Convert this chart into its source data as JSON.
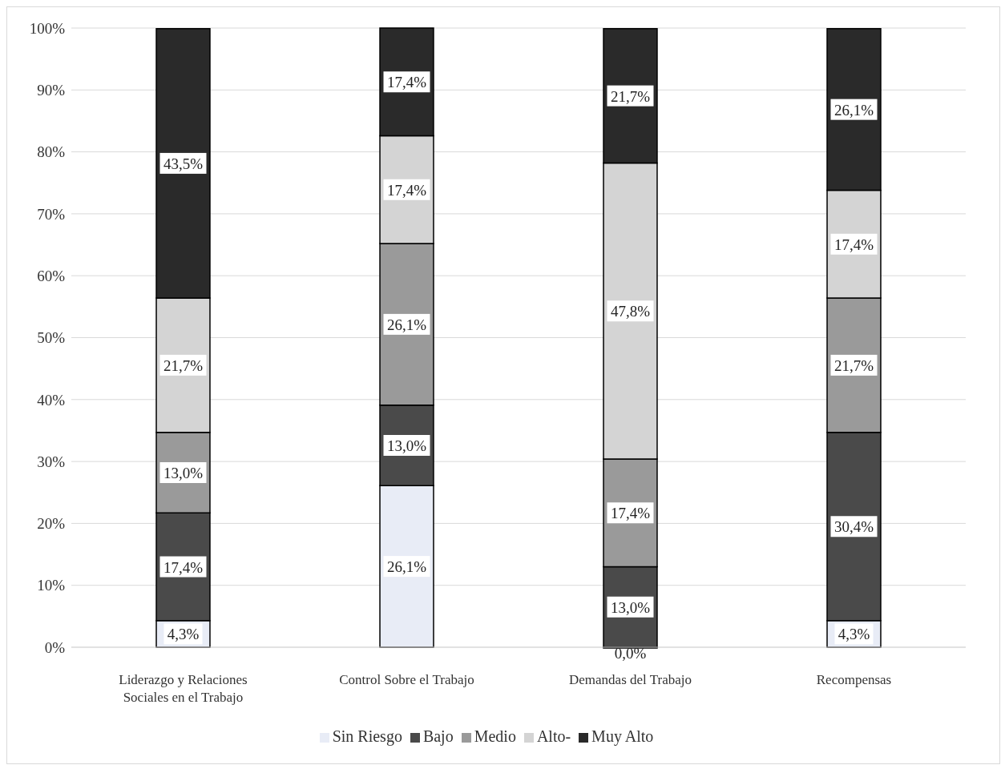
{
  "chart_data": {
    "type": "bar",
    "stacked": true,
    "categories": [
      "Liderazgo y Relaciones Sociales en el Trabajo",
      "Control Sobre el Trabajo",
      "Demandas del Trabajo",
      "Recompensas"
    ],
    "series": [
      {
        "name": "Sin Riesgo",
        "color": "#e8ecf6",
        "values": [
          4.3,
          26.1,
          0.0,
          4.3
        ],
        "value_labels": [
          "4,3%",
          "26,1%",
          "0,0%",
          "4,3%"
        ]
      },
      {
        "name": "Bajo",
        "color": "#4a4a4a",
        "values": [
          17.4,
          13.0,
          13.0,
          30.4
        ],
        "value_labels": [
          "17,4%",
          "13,0%",
          "13,0%",
          "30,4%"
        ]
      },
      {
        "name": "Medio",
        "color": "#9a9a9a",
        "values": [
          13.0,
          26.1,
          17.4,
          21.7
        ],
        "value_labels": [
          "13,0%",
          "26,1%",
          "17,4%",
          "21,7%"
        ]
      },
      {
        "name": "Alto-",
        "color": "#d4d4d4",
        "values": [
          21.7,
          17.4,
          47.8,
          17.4
        ],
        "value_labels": [
          "21,7%",
          "17,4%",
          "47,8%",
          "17,4%"
        ]
      },
      {
        "name": "Muy Alto",
        "color": "#2a2a2a",
        "values": [
          43.5,
          17.4,
          21.7,
          26.1
        ],
        "value_labels": [
          "43,5%",
          "17,4%",
          "21,7%",
          "26,1%"
        ]
      }
    ],
    "ylim": [
      0,
      100
    ],
    "yticks": [
      {
        "value": 0,
        "label": "0%"
      },
      {
        "value": 10,
        "label": "10%"
      },
      {
        "value": 20,
        "label": "20%"
      },
      {
        "value": 30,
        "label": "30%"
      },
      {
        "value": 40,
        "label": "40%"
      },
      {
        "value": 50,
        "label": "50%"
      },
      {
        "value": 60,
        "label": "60%"
      },
      {
        "value": 70,
        "label": "70%"
      },
      {
        "value": 80,
        "label": "80%"
      },
      {
        "value": 90,
        "label": "90%"
      },
      {
        "value": 100,
        "label": "100%"
      }
    ],
    "grid": "y",
    "legend": "bottom"
  }
}
